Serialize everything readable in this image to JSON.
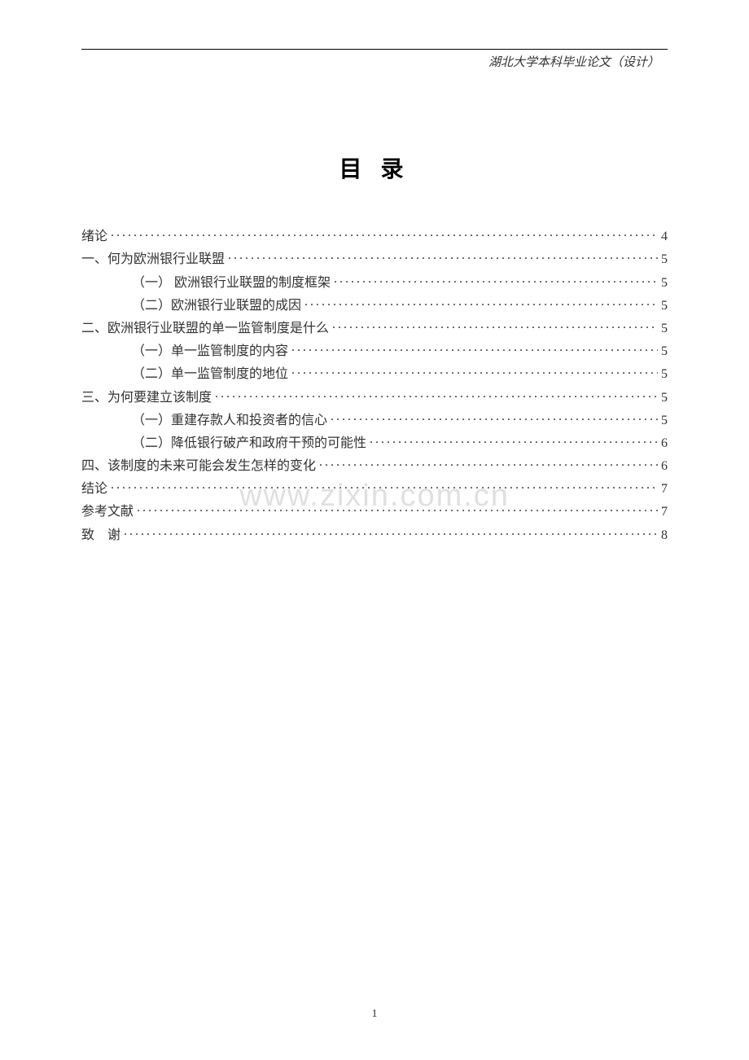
{
  "header": {
    "text": "湖北大学本科毕业论文（设计）"
  },
  "title": "目 录",
  "watermark": "www.zixin.com.cn",
  "footer_page": "1",
  "colors": {
    "background": "#ffffff",
    "text": "#333333",
    "watermark": "#e0e0e0",
    "line": "#000000"
  },
  "typography": {
    "body_font": "SimSun",
    "header_font": "KaiTi",
    "title_fontsize": 28,
    "body_fontsize": 16,
    "header_fontsize": 15,
    "footer_fontsize": 14
  },
  "toc": [
    {
      "label": "绪论",
      "page": "4",
      "indent": false
    },
    {
      "label": "一、何为欧洲银行业联盟",
      "page": "5",
      "indent": false
    },
    {
      "label": "（一） 欧洲银行业联盟的制度框架",
      "page": "5",
      "indent": true
    },
    {
      "label": "（二）欧洲银行业联盟的成因",
      "page": "5",
      "indent": true
    },
    {
      "label": "二、欧洲银行业联盟的单一监管制度是什么",
      "page": "5",
      "indent": false
    },
    {
      "label": "（一）单一监管制度的内容",
      "page": "5",
      "indent": true
    },
    {
      "label": "（二）单一监管制度的地位",
      "page": "5",
      "indent": true
    },
    {
      "label": "三、为何要建立该制度",
      "page": "5",
      "indent": false
    },
    {
      "label": "（一）重建存款人和投资者的信心",
      "page": "5",
      "indent": true
    },
    {
      "label": "（二）降低银行破产和政府干预的可能性",
      "page": "6",
      "indent": true
    },
    {
      "label": "四、该制度的未来可能会发生怎样的变化",
      "page": "6",
      "indent": false
    },
    {
      "label": "结论",
      "page": "7",
      "indent": false
    },
    {
      "label": "参考文献",
      "page": "7",
      "indent": false
    },
    {
      "label": "致　谢",
      "page": "8",
      "indent": false
    }
  ]
}
